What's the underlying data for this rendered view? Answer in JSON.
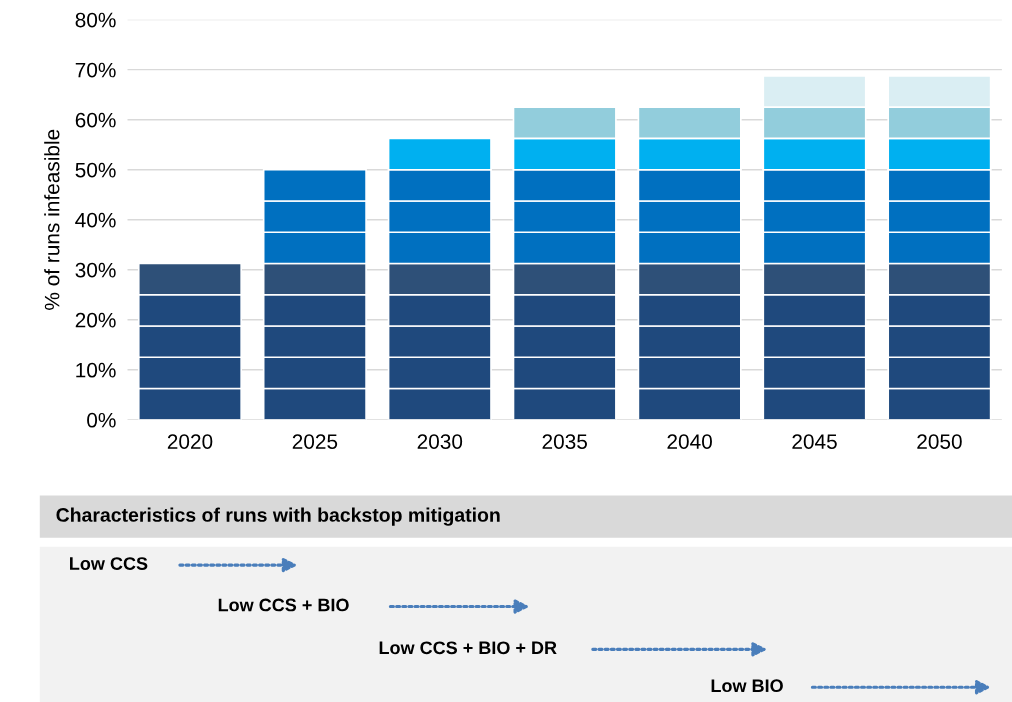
{
  "chart_data": {
    "type": "bar",
    "stacked": true,
    "ylabel": "% of runs infeasible",
    "categories": [
      "2020",
      "2025",
      "2030",
      "2035",
      "2040",
      "2045",
      "2050"
    ],
    "series": [
      {
        "color": "#1f497d",
        "values": [
          6.25,
          6.25,
          6.25,
          6.25,
          6.25,
          6.25,
          6.25
        ]
      },
      {
        "color": "#1f497d",
        "values": [
          6.25,
          6.25,
          6.25,
          6.25,
          6.25,
          6.25,
          6.25
        ]
      },
      {
        "color": "#1f497d",
        "values": [
          6.25,
          6.25,
          6.25,
          6.25,
          6.25,
          6.25,
          6.25
        ]
      },
      {
        "color": "#1f497d",
        "values": [
          6.25,
          6.25,
          6.25,
          6.25,
          6.25,
          6.25,
          6.25
        ]
      },
      {
        "color": "#2e5078",
        "values": [
          6.25,
          6.25,
          6.25,
          6.25,
          6.25,
          6.25,
          6.25
        ]
      },
      {
        "color": "#0070c0",
        "values": [
          null,
          6.25,
          6.25,
          6.25,
          6.25,
          6.25,
          6.25
        ]
      },
      {
        "color": "#0070c0",
        "values": [
          null,
          6.25,
          6.25,
          6.25,
          6.25,
          6.25,
          6.25
        ]
      },
      {
        "color": "#0070c0",
        "values": [
          null,
          6.25,
          6.25,
          6.25,
          6.25,
          6.25,
          6.25
        ]
      },
      {
        "color": "#00b0f0",
        "values": [
          null,
          null,
          6.25,
          6.25,
          6.25,
          6.25,
          6.25
        ]
      },
      {
        "color": "#92cddc",
        "values": [
          null,
          null,
          null,
          6.25,
          6.25,
          6.25,
          6.25
        ]
      },
      {
        "color": "#daeef3",
        "values": [
          null,
          null,
          null,
          null,
          null,
          6.25,
          6.25
        ]
      }
    ],
    "ylim": [
      0,
      80
    ],
    "yticks": [
      {
        "value": 0,
        "label": "0%"
      },
      {
        "value": 10,
        "label": "10%"
      },
      {
        "value": 20,
        "label": "20%"
      },
      {
        "value": 30,
        "label": "30%"
      },
      {
        "value": 40,
        "label": "40%"
      },
      {
        "value": 50,
        "label": "50%"
      },
      {
        "value": 60,
        "label": "60%"
      },
      {
        "value": 70,
        "label": "70%"
      },
      {
        "value": 80,
        "label": "80%"
      }
    ],
    "grid": "y",
    "annotations": [
      "Characteristics of runs with backstop mitigation",
      "Low CCS",
      "Low CCS + BIO",
      "Low CCS + BIO + DR",
      "Low BIO"
    ]
  }
}
